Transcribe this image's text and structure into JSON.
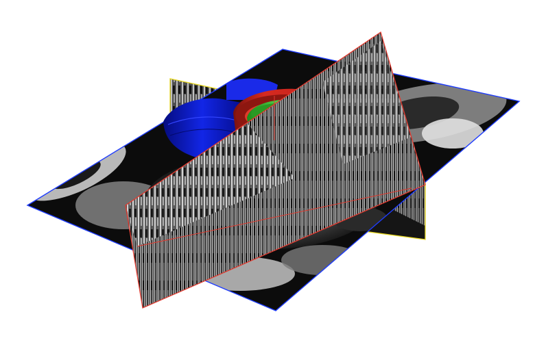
{
  "scene": {
    "background_color": "#ffffff",
    "slice_border_colors": {
      "axial": "#1e3cff",
      "sagittal": "#e23a2f",
      "coronal": "#e8d820"
    },
    "segment_colors": {
      "left_ventricle_blood_pool": "#3fd23a",
      "myocardium": "#c9241c",
      "right_ventricle": "#0f1ed8"
    },
    "slices": [
      {
        "id": "axial",
        "orientation": "horizontal"
      },
      {
        "id": "sagittal",
        "orientation": "vertical"
      },
      {
        "id": "coronal",
        "orientation": "vertical"
      }
    ]
  }
}
